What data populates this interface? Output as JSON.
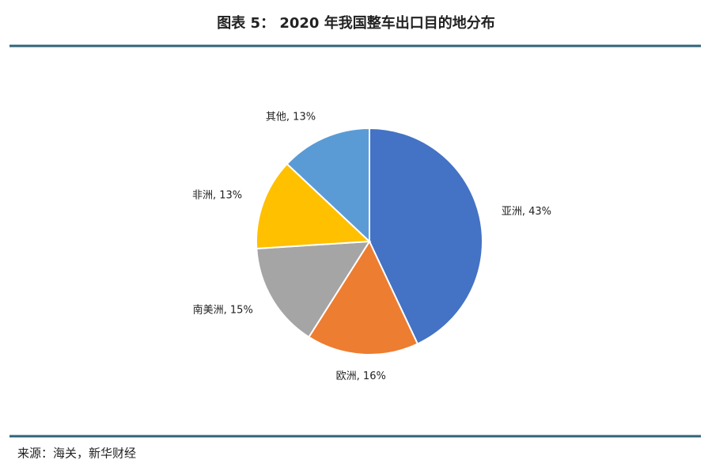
{
  "chart_data": {
    "type": "pie",
    "title": "图表 5： 2020 年我国整车出口目的地分布",
    "categories": [
      "亚洲",
      "欧洲",
      "南美洲",
      "非洲",
      "其他"
    ],
    "values": [
      43,
      16,
      15,
      13,
      13
    ],
    "value_labels": [
      "亚洲, 43%",
      "欧洲, 16%",
      "南美洲, 15%",
      "非洲, 13%",
      "其他, 13%"
    ],
    "colors": [
      "#4472c4",
      "#ed7d31",
      "#a5a5a5",
      "#ffc000",
      "#5b9bd5"
    ],
    "source": "来源：海关，新华财经"
  }
}
